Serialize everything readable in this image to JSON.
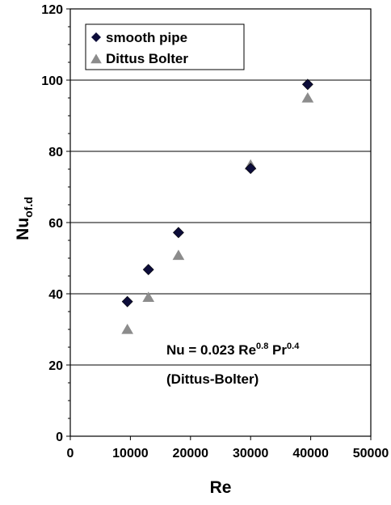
{
  "chart_data": {
    "type": "scatter",
    "xlabel": "Re",
    "ylabel": {
      "main": "Nu",
      "subscript": "of.d"
    },
    "xlim": [
      0,
      50000
    ],
    "ylim": [
      0,
      120
    ],
    "x_ticks": [
      "0",
      "10000",
      "20000",
      "30000",
      "40000",
      "50000"
    ],
    "y_ticks": [
      "0",
      "20",
      "40",
      "60",
      "80",
      "100",
      "120"
    ],
    "grid": "horizontal major lines",
    "legend_position": "top-left",
    "series": [
      {
        "name": "smooth pipe",
        "marker": "diamond",
        "color": "#0d0d3a",
        "points": [
          [
            9500,
            37.8
          ],
          [
            13000,
            46.8
          ],
          [
            18000,
            57.2
          ],
          [
            30000,
            75.2
          ],
          [
            39500,
            98.8
          ]
        ]
      },
      {
        "name": "Dittus Bolter",
        "marker": "triangle",
        "color": "#8c8c8c",
        "points": [
          [
            9500,
            30.0
          ],
          [
            13000,
            39.0
          ],
          [
            18000,
            50.8
          ],
          [
            30000,
            76.2
          ],
          [
            39500,
            95.0
          ]
        ]
      }
    ],
    "annotation": {
      "line1_prefix": "Nu = 0.023 Re",
      "line1_exp1": "0.8",
      "line1_mid": " Pr",
      "line1_exp2": "0.4",
      "line2": "(Dittus-Bolter)"
    }
  }
}
